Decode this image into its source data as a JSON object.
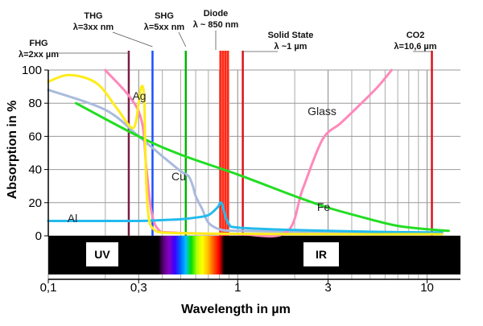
{
  "chart_data": {
    "type": "line",
    "title": "",
    "xlabel": "Wavelength in µm",
    "ylabel": "Absorption in %",
    "xscale": "log",
    "xlim": [
      0.1,
      15
    ],
    "ylim": [
      0,
      100
    ],
    "x_ticks": [
      0.1,
      0.3,
      1,
      3,
      10
    ],
    "x_tick_labels": [
      "0,1",
      "0,3",
      "1",
      "3",
      "10"
    ],
    "y_ticks": [
      0,
      20,
      40,
      60,
      80,
      100
    ],
    "y_tick_labels": [
      "0",
      "20",
      "40",
      "60",
      "80",
      "100"
    ],
    "grid": true,
    "spectrum_bar": {
      "uv_label": "UV",
      "ir_label": "IR",
      "visible_range": [
        0.38,
        0.85
      ],
      "colors": [
        "#000000",
        "#5b007a",
        "#8800c8",
        "#3a00ff",
        "#0060ff",
        "#00c0ff",
        "#00e000",
        "#b0ff00",
        "#ffff00",
        "#ffc000",
        "#ff6000",
        "#ff0000",
        "#000000"
      ]
    },
    "lasers": [
      {
        "name": "FHG",
        "line1": "FHG",
        "line2": "λ=2xx µm",
        "x": 0.266,
        "color": "#7a1f46"
      },
      {
        "name": "THG",
        "line1": "THG",
        "line2": "λ=3xx nm",
        "x": 0.355,
        "color": "#1a50ff"
      },
      {
        "name": "SHG",
        "line1": "SHG",
        "line2": "λ=5xx nm",
        "x": 0.532,
        "color": "#00b400"
      },
      {
        "name": "Diode",
        "line1": "Diode",
        "line2": "λ ~ 850 nm",
        "x_range": [
          0.8,
          0.9
        ],
        "color": "#ff2a1a"
      },
      {
        "name": "Solid State",
        "line1": "Solid State",
        "line2": "λ ~1 µm",
        "x": 1.064,
        "color": "#e0101a"
      },
      {
        "name": "CO2",
        "line1": "CO2",
        "line2": "λ=10,6 µm",
        "x": 10.6,
        "color": "#e0101a"
      }
    ],
    "series": [
      {
        "name": "Ag",
        "color": "#ffec1c",
        "x": [
          0.1,
          0.13,
          0.18,
          0.23,
          0.28,
          0.3,
          0.31,
          0.32,
          0.325,
          0.33,
          0.34,
          0.36,
          0.4,
          0.6,
          1,
          3,
          12
        ],
        "values": [
          93,
          97,
          92,
          77,
          65,
          80,
          90,
          85,
          55,
          28,
          10,
          4,
          2,
          1.5,
          1.2,
          1,
          1
        ]
      },
      {
        "name": "Cu",
        "color": "#aabbdd",
        "x": [
          0.1,
          0.2,
          0.3,
          0.4,
          0.5,
          0.55,
          0.58,
          0.6,
          0.65,
          0.7,
          0.8,
          1,
          3,
          12
        ],
        "values": [
          88,
          76,
          60,
          48,
          39,
          36,
          30,
          24,
          16,
          8,
          4,
          3,
          2,
          1.5
        ]
      },
      {
        "name": "Al",
        "color": "#22bbee",
        "x": [
          0.1,
          0.2,
          0.3,
          0.4,
          0.5,
          0.6,
          0.7,
          0.78,
          0.82,
          0.86,
          0.9,
          1,
          2,
          5,
          12
        ],
        "values": [
          9,
          9,
          9,
          9.5,
          10,
          11,
          12.5,
          17,
          20,
          12,
          7,
          5,
          3.5,
          2.5,
          2
        ]
      },
      {
        "name": "Fe",
        "color": "#22dd22",
        "x": [
          0.14,
          0.3,
          0.5,
          1,
          2,
          3,
          5,
          7,
          10,
          13
        ],
        "values": [
          80,
          60,
          49,
          37,
          24,
          17,
          10,
          6,
          4,
          3
        ]
      },
      {
        "name": "Glass",
        "color": "#ff88bb",
        "x": [
          0.2,
          0.3,
          0.33,
          0.35,
          0.38,
          0.45,
          1,
          1.8,
          2.2,
          2.8,
          3.5,
          4.5,
          5.5,
          6.5
        ],
        "values": [
          100,
          75,
          40,
          15,
          4,
          2,
          1,
          2,
          28,
          58,
          68,
          80,
          90,
          100
        ]
      }
    ],
    "series_labels": {
      "Ag": "Ag",
      "Cu": "Cu",
      "Al": "Al",
      "Fe": "Fe",
      "Glass": "Glass"
    }
  }
}
